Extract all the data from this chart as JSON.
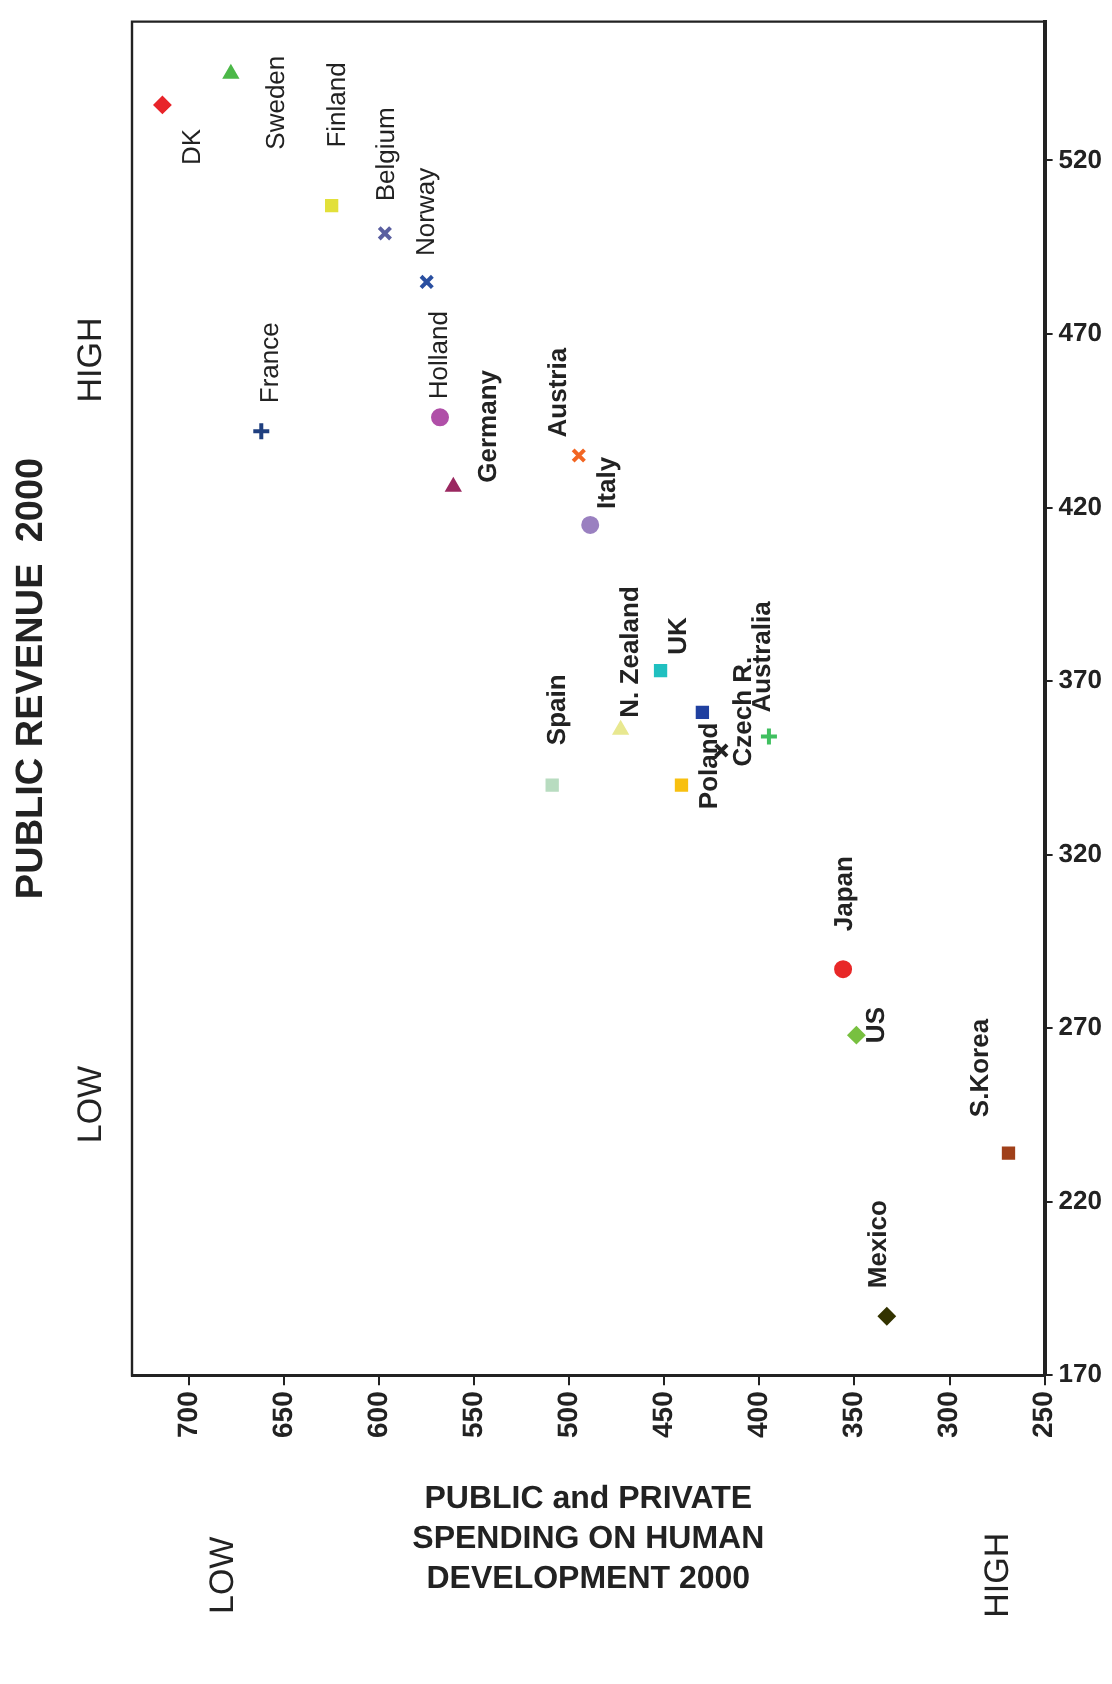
{
  "chart_data": {
    "type": "scatter",
    "ylabel": "PUBLIC REVENUE  2000",
    "xlabel": "PUBLIC and PRIVATE SPENDING ON HUMAN DEVELOPMENT 2000",
    "annotations": [
      "LOW",
      "HIGH",
      "LOW",
      "HIGH"
    ],
    "xlim": [
      730,
      250
    ],
    "xticks": [
      700,
      650,
      600,
      550,
      500,
      450,
      400,
      350,
      300,
      250
    ],
    "ylim": [
      170,
      560
    ],
    "yticks": [
      170,
      220,
      270,
      320,
      370,
      420,
      470,
      520
    ],
    "grid": false,
    "legend": false,
    "series": [
      {
        "name": "DK",
        "color": "#e8242a",
        "marker": "diamond",
        "x": [
          714
        ],
        "values": [
          536
        ]
      },
      {
        "name": "Sweden",
        "color": "#4cb848",
        "marker": "triangle",
        "x": [
          678
        ],
        "values": [
          545
        ]
      },
      {
        "name": "Finland",
        "color": "#e2e03a",
        "marker": "square",
        "x": [
          625
        ],
        "values": [
          507
        ]
      },
      {
        "name": "Belgium",
        "color": "#5a5fa0",
        "marker": "x",
        "x": [
          597
        ],
        "values": [
          499
        ]
      },
      {
        "name": "Norway",
        "color": "#2a4fa0",
        "marker": "x",
        "x": [
          575
        ],
        "values": [
          485
        ]
      },
      {
        "name": "France",
        "color": "#1f3f7f",
        "marker": "cross",
        "x": [
          662
        ],
        "values": [
          442
        ]
      },
      {
        "name": "Holland",
        "color": "#b04fa8",
        "marker": "circle",
        "x": [
          568
        ],
        "values": [
          446
        ]
      },
      {
        "name": "Germany",
        "color": "#9a2860",
        "marker": "triangle",
        "x": [
          561
        ],
        "values": [
          426
        ]
      },
      {
        "name": "Austria",
        "color": "#f26522",
        "marker": "x",
        "x": [
          495
        ],
        "values": [
          435
        ]
      },
      {
        "name": "Italy",
        "color": "#9a80c0",
        "marker": "circle",
        "x": [
          489
        ],
        "values": [
          415
        ]
      },
      {
        "name": "Spain",
        "color": "#b8dcc0",
        "marker": "square",
        "x": [
          509
        ],
        "values": [
          340
        ]
      },
      {
        "name": "N. Zealand",
        "color": "#e8e890",
        "marker": "triangle",
        "x": [
          473
        ],
        "values": [
          356
        ]
      },
      {
        "name": "UK",
        "color": "#20c0c0",
        "marker": "square",
        "x": [
          452
        ],
        "values": [
          373
        ]
      },
      {
        "color": "#2040a0",
        "marker": "square",
        "x": [
          430
        ],
        "values": [
          361
        ]
      },
      {
        "name": "Poland",
        "color": "#f8c010",
        "marker": "square",
        "x": [
          441
        ],
        "values": [
          340
        ]
      },
      {
        "name": "Czech R.",
        "color": "#222222",
        "marker": "x",
        "x": [
          420
        ],
        "values": [
          350
        ]
      },
      {
        "name": "Australia",
        "color": "#40c060",
        "marker": "cross",
        "x": [
          395
        ],
        "values": [
          354
        ]
      },
      {
        "name": "Japan",
        "color": "#e82828",
        "marker": "circle",
        "x": [
          356
        ],
        "values": [
          287
        ]
      },
      {
        "name": "US",
        "color": "#78c040",
        "marker": "diamond",
        "x": [
          349
        ],
        "values": [
          268
        ]
      },
      {
        "name": "S.Korea",
        "color": "#a0401a",
        "marker": "square",
        "x": [
          269
        ],
        "values": [
          234
        ]
      },
      {
        "name": "Mexico",
        "color": "#333300",
        "marker": "diamond",
        "x": [
          333
        ],
        "values": [
          187
        ]
      }
    ]
  }
}
